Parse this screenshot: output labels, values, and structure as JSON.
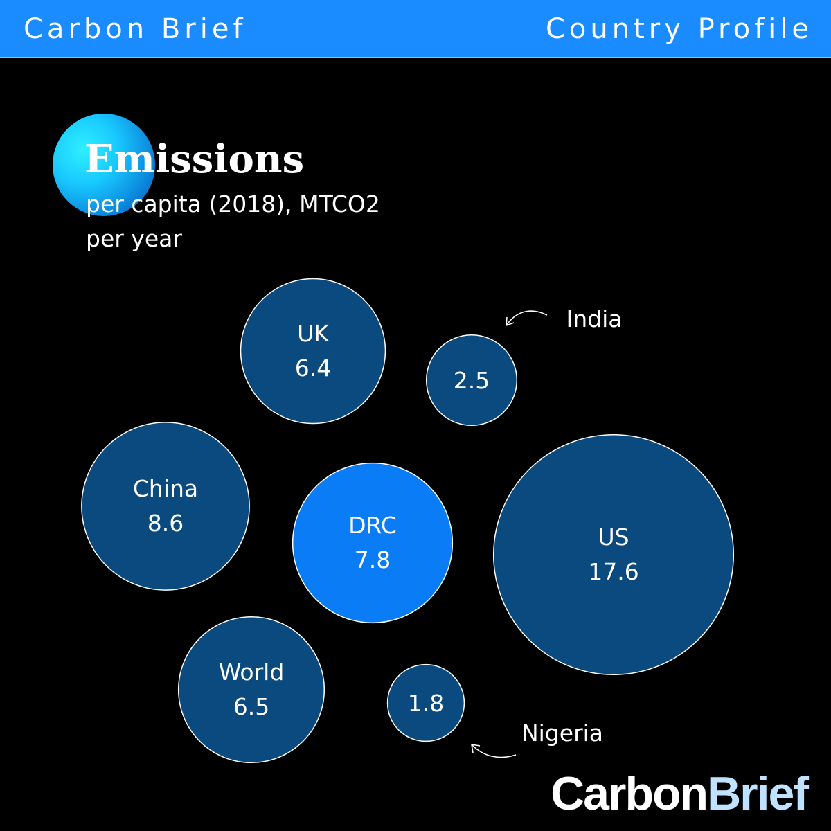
{
  "header": {
    "brand": "Carbon Brief",
    "section": "Country Profile"
  },
  "colors": {
    "header": "#1a8cff",
    "bubble": "#0b4a7e",
    "highlight": "#0a7cf5",
    "background": "#000000"
  },
  "chart_data": {
    "type": "bubble",
    "title": "Emissions",
    "subtitle": "per capita (2018), MTCO2 per year",
    "series": [
      {
        "name": "UK",
        "value": 6.4,
        "highlight": false,
        "label_outside": false
      },
      {
        "name": "India",
        "value": 2.5,
        "highlight": false,
        "label_outside": true
      },
      {
        "name": "China",
        "value": 8.6,
        "highlight": false,
        "label_outside": false
      },
      {
        "name": "DRC",
        "value": 7.8,
        "highlight": true,
        "label_outside": false
      },
      {
        "name": "US",
        "value": 17.6,
        "highlight": false,
        "label_outside": false
      },
      {
        "name": "World",
        "value": 6.5,
        "highlight": false,
        "label_outside": false
      },
      {
        "name": "Nigeria",
        "value": 1.8,
        "highlight": false,
        "label_outside": true
      }
    ]
  },
  "logo": {
    "part1": "Carbon",
    "part2": "Brief"
  }
}
